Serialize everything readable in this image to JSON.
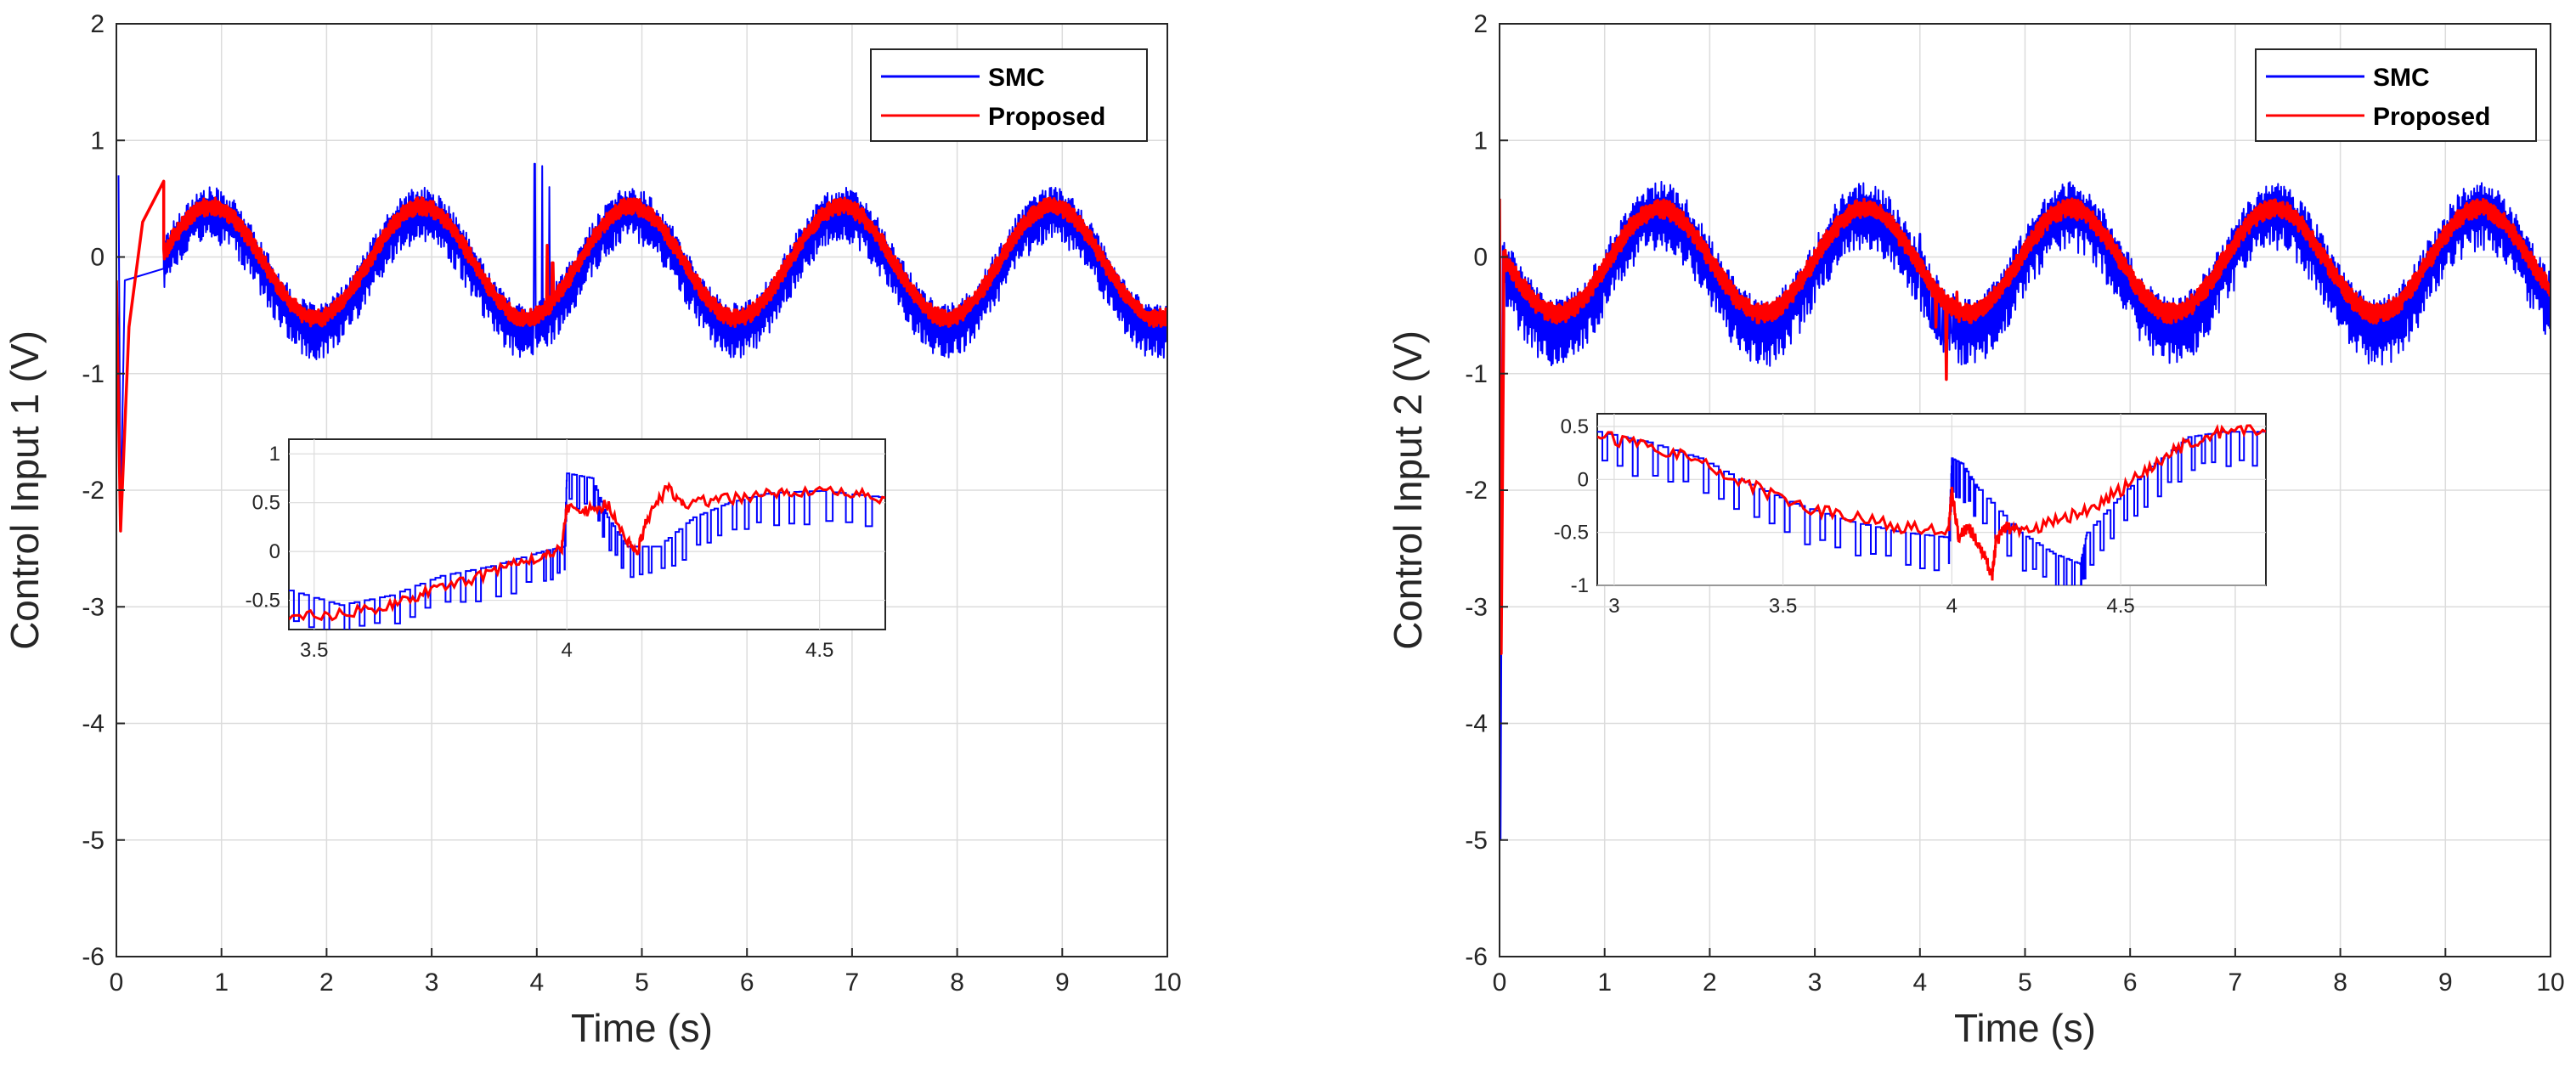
{
  "legend_labels": {
    "smc": "SMC",
    "proposed": "Proposed"
  },
  "colors": {
    "smc": "#0000ff",
    "proposed": "#ff0000",
    "grid": "#dcdcdc",
    "axis": "#262626"
  },
  "chart_data": [
    {
      "type": "line",
      "title": "",
      "xlabel": "Time (s)",
      "ylabel": "Control Input 1 (V)",
      "xlim": [
        0,
        10
      ],
      "ylim": [
        -6,
        2
      ],
      "xticks": [
        "0",
        "1",
        "2",
        "3",
        "4",
        "5",
        "6",
        "7",
        "8",
        "9",
        "10"
      ],
      "yticks": [
        "2",
        "1",
        "0",
        "-1",
        "-2",
        "-3",
        "-4",
        "-5",
        "-6"
      ],
      "legend_position": "top-right",
      "series": [
        {
          "name": "SMC",
          "model": {
            "offset": -0.02,
            "amp": 0.5,
            "period": 2.0,
            "phase": -0.1,
            "chatter": 0.36,
            "band_hi": 0.12
          },
          "transients": [
            {
              "t": 0.02,
              "v": 0.7
            },
            {
              "t": 0.04,
              "v": -2.3
            },
            {
              "t": 0.08,
              "v": -0.2
            },
            {
              "t": 0.45,
              "v": -0.1
            },
            {
              "t": 3.98,
              "v": 0.8
            },
            {
              "t": 4.05,
              "v": 0.78
            },
            {
              "t": 4.12,
              "v": 0.6
            }
          ]
        },
        {
          "name": "Proposed",
          "model": {
            "offset": -0.02,
            "amp": 0.48,
            "period": 2.0,
            "phase": -0.1,
            "chatter": 0.1,
            "band_hi": 0.05
          },
          "transients": [
            {
              "t": 0.0,
              "v": -0.2
            },
            {
              "t": 0.04,
              "v": -2.35
            },
            {
              "t": 0.12,
              "v": -0.6
            },
            {
              "t": 0.25,
              "v": 0.3
            },
            {
              "t": 0.45,
              "v": 0.65
            },
            {
              "t": 4.1,
              "v": 0.1
            },
            {
              "t": 4.15,
              "v": -0.05
            }
          ]
        }
      ],
      "inset": {
        "xlim": [
          3.45,
          4.63
        ],
        "ylim": [
          -0.8,
          1.15
        ],
        "xticks": [
          "3.5",
          "4",
          "4.5"
        ],
        "yticks": [
          "1",
          "0.5",
          "0",
          "-0.5"
        ],
        "series": [
          {
            "name": "SMC",
            "points": [
              [
                3.45,
                -0.4
              ],
              [
                3.55,
                -0.55
              ],
              [
                3.65,
                -0.45
              ],
              [
                3.75,
                -0.25
              ],
              [
                3.85,
                -0.15
              ],
              [
                3.95,
                0.0
              ],
              [
                3.995,
                0.05
              ],
              [
                4.0,
                0.8
              ],
              [
                4.05,
                0.75
              ],
              [
                4.08,
                0.35
              ],
              [
                4.12,
                0.05
              ],
              [
                4.18,
                0.05
              ],
              [
                4.25,
                0.35
              ],
              [
                4.32,
                0.5
              ],
              [
                4.4,
                0.6
              ],
              [
                4.5,
                0.62
              ],
              [
                4.63,
                0.55
              ]
            ]
          },
          {
            "name": "Proposed",
            "points": [
              [
                3.45,
                -0.68
              ],
              [
                3.55,
                -0.65
              ],
              [
                3.65,
                -0.55
              ],
              [
                3.72,
                -0.42
              ],
              [
                3.8,
                -0.3
              ],
              [
                3.88,
                -0.15
              ],
              [
                3.95,
                -0.05
              ],
              [
                3.99,
                0.05
              ],
              [
                4.0,
                0.45
              ],
              [
                4.04,
                0.42
              ],
              [
                4.08,
                0.48
              ],
              [
                4.12,
                0.12
              ],
              [
                4.14,
                0.0
              ],
              [
                4.16,
                0.35
              ],
              [
                4.2,
                0.65
              ],
              [
                4.23,
                0.5
              ],
              [
                4.3,
                0.52
              ],
              [
                4.38,
                0.58
              ],
              [
                4.45,
                0.6
              ],
              [
                4.55,
                0.6
              ],
              [
                4.63,
                0.55
              ]
            ]
          }
        ]
      }
    },
    {
      "type": "line",
      "title": "",
      "xlabel": "Time (s)",
      "ylabel": "Control Input 2 (V)",
      "xlim": [
        0,
        10
      ],
      "ylim": [
        -6,
        2
      ],
      "xticks": [
        "0",
        "1",
        "2",
        "3",
        "4",
        "5",
        "6",
        "7",
        "8",
        "9",
        "10"
      ],
      "yticks": [
        "2",
        "1",
        "0",
        "-1",
        "-2",
        "-3",
        "-4",
        "-5",
        "-6"
      ],
      "legend_position": "top-right",
      "series": [
        {
          "name": "SMC",
          "model": {
            "offset": 0.0,
            "amp": 0.5,
            "period": 1.95,
            "phase": 0.55,
            "chatter": 0.45,
            "band_hi": 0.15
          },
          "transients": [
            {
              "t": 0.0,
              "v": 0.5
            },
            {
              "t": 0.01,
              "v": -5.0
            },
            {
              "t": 0.03,
              "v": -0.4
            },
            {
              "t": 4.0,
              "v": 0.2
            },
            {
              "t": 4.1,
              "v": -0.6
            },
            {
              "t": 4.2,
              "v": -0.75
            },
            {
              "t": 4.3,
              "v": -0.65
            }
          ]
        },
        {
          "name": "Proposed",
          "model": {
            "offset": 0.0,
            "amp": 0.45,
            "period": 1.95,
            "phase": 0.55,
            "chatter": 0.12,
            "band_hi": 0.05
          },
          "transients": [
            {
              "t": 0.0,
              "v": 0.5
            },
            {
              "t": 0.015,
              "v": -3.4
            },
            {
              "t": 0.04,
              "v": -0.5
            },
            {
              "t": 4.05,
              "v": -0.2
            },
            {
              "t": 4.15,
              "v": -0.6
            },
            {
              "t": 4.25,
              "v": -1.05
            },
            {
              "t": 4.35,
              "v": -0.3
            }
          ]
        }
      ],
      "inset": {
        "xlim": [
          2.95,
          4.93
        ],
        "ylim": [
          -1.0,
          0.62
        ],
        "xticks": [
          "3",
          "3.5",
          "4",
          "4.5"
        ],
        "yticks": [
          "0.5",
          "0",
          "-0.5",
          "-1"
        ],
        "series": [
          {
            "name": "SMC",
            "points": [
              [
                2.95,
                0.45
              ],
              [
                3.1,
                0.35
              ],
              [
                3.25,
                0.2
              ],
              [
                3.4,
                -0.05
              ],
              [
                3.55,
                -0.25
              ],
              [
                3.7,
                -0.4
              ],
              [
                3.85,
                -0.5
              ],
              [
                3.99,
                -0.55
              ],
              [
                4.0,
                0.2
              ],
              [
                4.03,
                0.15
              ],
              [
                4.08,
                -0.1
              ],
              [
                4.2,
                -0.5
              ],
              [
                4.3,
                -0.7
              ],
              [
                4.38,
                -0.8
              ],
              [
                4.4,
                -0.5
              ],
              [
                4.5,
                -0.15
              ],
              [
                4.6,
                0.15
              ],
              [
                4.7,
                0.4
              ],
              [
                4.8,
                0.45
              ],
              [
                4.93,
                0.45
              ]
            ]
          },
          {
            "name": "Proposed",
            "points": [
              [
                2.95,
                0.42
              ],
              [
                3.1,
                0.3
              ],
              [
                3.25,
                0.18
              ],
              [
                3.4,
                -0.05
              ],
              [
                3.55,
                -0.25
              ],
              [
                3.7,
                -0.35
              ],
              [
                3.85,
                -0.45
              ],
              [
                3.99,
                -0.5
              ],
              [
                4.0,
                -0.1
              ],
              [
                4.02,
                -0.55
              ],
              [
                4.05,
                -0.45
              ],
              [
                4.08,
                -0.6
              ],
              [
                4.1,
                -0.75
              ],
              [
                4.12,
                -0.9
              ],
              [
                4.13,
                -0.6
              ],
              [
                4.16,
                -0.45
              ],
              [
                4.2,
                -0.5
              ],
              [
                4.3,
                -0.4
              ],
              [
                4.4,
                -0.3
              ],
              [
                4.5,
                -0.1
              ],
              [
                4.6,
                0.15
              ],
              [
                4.7,
                0.35
              ],
              [
                4.8,
                0.45
              ],
              [
                4.93,
                0.45
              ]
            ]
          }
        ]
      }
    }
  ]
}
